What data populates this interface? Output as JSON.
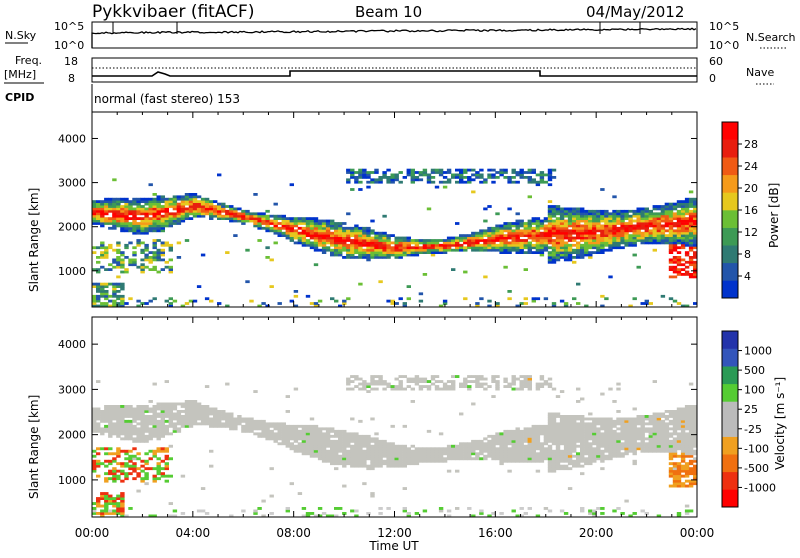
{
  "header": {
    "station": "Pykkvibaer (fitACF)",
    "beam": "Beam 10",
    "date": "04/May/2012"
  },
  "noise_panel": {
    "left_label": "N.Sky",
    "right_label": "N.Search",
    "left_ticks": [
      "10^5",
      "10^0"
    ],
    "right_ticks": [
      "10^5",
      "10^0"
    ]
  },
  "freq_panel": {
    "left_label_1": "Freq.",
    "left_label_2": "[MHz]",
    "right_label": "Nave",
    "left_ticks": [
      "18",
      "8"
    ],
    "right_ticks": [
      "60",
      "0"
    ]
  },
  "cpid": {
    "label": "CPID",
    "mode": "normal (fast stereo) 153"
  },
  "chart_data": [
    {
      "type": "heatmap",
      "title": "Power",
      "ylabel": "Slant Range [km]",
      "xlabel": "Time UT",
      "ylim": [
        180,
        4600
      ],
      "xlim": [
        0,
        24
      ],
      "yticks": [
        "1000",
        "2000",
        "3000",
        "4000"
      ],
      "xticks": [
        "00:00",
        "04:00",
        "08:00",
        "12:00",
        "16:00",
        "20:00",
        "00:00"
      ],
      "colorbar": {
        "label": "Power [dB]",
        "ticks": [
          "4",
          "8",
          "12",
          "16",
          "20",
          "24",
          "28"
        ],
        "colors": [
          "#0033cc",
          "#2255aa",
          "#2f7a73",
          "#3d9a55",
          "#6bbf35",
          "#e6c81e",
          "#f59a1a",
          "#f05a14",
          "#e81e0e",
          "#ff0000"
        ]
      },
      "echo_band_center_km": [
        [
          0,
          2300
        ],
        [
          2,
          2200
        ],
        [
          4,
          2450
        ],
        [
          6,
          2200
        ],
        [
          8,
          1900
        ],
        [
          10,
          1650
        ],
        [
          12,
          1500
        ],
        [
          14,
          1550
        ],
        [
          16,
          1700
        ],
        [
          18,
          1800
        ],
        [
          20,
          1850
        ],
        [
          22,
          2000
        ],
        [
          24,
          2100
        ]
      ]
    },
    {
      "type": "heatmap",
      "title": "Velocity",
      "ylabel": "Slant Range [km]",
      "xlabel": "Time UT",
      "ylim": [
        180,
        4600
      ],
      "xlim": [
        0,
        24
      ],
      "yticks": [
        "1000",
        "2000",
        "3000",
        "4000"
      ],
      "xticks": [
        "00:00",
        "04:00",
        "08:00",
        "12:00",
        "16:00",
        "20:00",
        "00:00"
      ],
      "colorbar": {
        "label": "Velocity [m s⁻¹]",
        "ticks": [
          "1000",
          "500",
          "100",
          "25",
          "-25",
          "-100",
          "-500",
          "-1000"
        ],
        "colors": [
          "#2233aa",
          "#3355bb",
          "#2a9a55",
          "#55cc33",
          "#bbbbbb",
          "#bbbbbb",
          "#f0a020",
          "#f07010",
          "#ee3010",
          "#ff0000"
        ]
      }
    }
  ],
  "x_axis_title": "Time UT"
}
